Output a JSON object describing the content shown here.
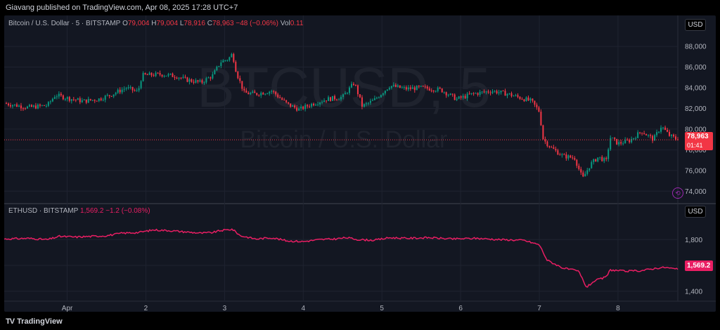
{
  "header": {
    "published": "Giavang published on TradingView.com, Apr 08, 2025 17:28 UTC+7"
  },
  "footer": {
    "logo": "TradingView"
  },
  "watermark": {
    "line1": "BTCUSD, 5",
    "line2": "Bitcoin / U.S. Dollar"
  },
  "btc": {
    "symbol": "Bitcoin / U.S. Dollar · 5 · BITSTAMP",
    "o_label": "O",
    "o": "79,004",
    "h_label": "H",
    "h": "79,004",
    "l_label": "L",
    "l": "78,916",
    "c_label": "C",
    "c": "78,963",
    "change": "−48 (−0.06%)",
    "vol_label": "Vol",
    "vol": "0.11",
    "last_price": "78,963",
    "countdown": "01:41",
    "currency": "USD"
  },
  "eth": {
    "symbol": "ETHUSD · BITSTAMP",
    "last": "1,569.2",
    "change": "−1.2 (−0.08%)",
    "last_price": "1,569.2",
    "currency": "USD"
  },
  "colors": {
    "up": "#089981",
    "down": "#f23645",
    "eth_line": "#e91e63",
    "bg": "#131722",
    "grid": "#1f2330"
  },
  "chart_data": [
    {
      "type": "candlestick",
      "title": "Bitcoin / U.S. Dollar · 5 · BITSTAMP",
      "ylim": [
        73000,
        89500
      ],
      "y_ticks": [
        74000,
        76000,
        78000,
        80000,
        82000,
        84000,
        86000,
        88000
      ],
      "y_tick_labels": [
        "74,000",
        "76,000",
        "78,000",
        "80,000",
        "82,000",
        "84,000",
        "86,000",
        "88,000"
      ],
      "x_ticks": [
        {
          "label": "Apr",
          "t": 1
        },
        {
          "label": "2",
          "t": 2
        },
        {
          "label": "3",
          "t": 3
        },
        {
          "label": "4",
          "t": 4
        },
        {
          "label": "5",
          "t": 5
        },
        {
          "label": "6",
          "t": 6
        },
        {
          "label": "7",
          "t": 7
        },
        {
          "label": "8",
          "t": 8
        }
      ],
      "xlim": [
        0.2,
        8.76
      ],
      "path": [
        [
          0.2,
          82500
        ],
        [
          0.5,
          82100
        ],
        [
          0.75,
          82300
        ],
        [
          0.85,
          83300
        ],
        [
          1.0,
          83000
        ],
        [
          1.2,
          82700
        ],
        [
          1.4,
          82900
        ],
        [
          1.55,
          83300
        ],
        [
          1.75,
          84000
        ],
        [
          1.9,
          83600
        ],
        [
          1.95,
          85200
        ],
        [
          2.2,
          85300
        ],
        [
          2.4,
          85100
        ],
        [
          2.5,
          84800
        ],
        [
          2.7,
          84500
        ],
        [
          2.85,
          85200
        ],
        [
          2.95,
          86500
        ],
        [
          3.05,
          86800
        ],
        [
          3.1,
          87300
        ],
        [
          3.15,
          85500
        ],
        [
          3.25,
          83500
        ],
        [
          3.4,
          83400
        ],
        [
          3.6,
          83700
        ],
        [
          3.8,
          82400
        ],
        [
          3.95,
          81900
        ],
        [
          4.1,
          82400
        ],
        [
          4.3,
          82900
        ],
        [
          4.5,
          83100
        ],
        [
          4.65,
          84500
        ],
        [
          4.75,
          82200
        ],
        [
          4.9,
          82800
        ],
        [
          5.1,
          84200
        ],
        [
          5.3,
          83900
        ],
        [
          5.5,
          84000
        ],
        [
          5.75,
          83800
        ],
        [
          5.95,
          82900
        ],
        [
          6.15,
          83400
        ],
        [
          6.4,
          83700
        ],
        [
          6.6,
          83400
        ],
        [
          6.9,
          82700
        ],
        [
          7.0,
          81700
        ],
        [
          7.05,
          79000
        ],
        [
          7.15,
          78200
        ],
        [
          7.3,
          77400
        ],
        [
          7.45,
          77200
        ],
        [
          7.55,
          75200
        ],
        [
          7.65,
          76600
        ],
        [
          7.75,
          77300
        ],
        [
          7.85,
          76900
        ],
        [
          7.9,
          79200
        ],
        [
          8.0,
          78600
        ],
        [
          8.15,
          78900
        ],
        [
          8.3,
          79800
        ],
        [
          8.45,
          79000
        ],
        [
          8.55,
          80300
        ],
        [
          8.65,
          79400
        ],
        [
          8.76,
          78963
        ]
      ],
      "last": 78963
    },
    {
      "type": "line",
      "title": "ETHUSD · BITSTAMP",
      "ylim": [
        1350,
        1970
      ],
      "y_ticks": [
        1400,
        1600,
        1800
      ],
      "y_tick_labels": [
        "1,400",
        "1,600",
        "1,800"
      ],
      "xlim": [
        0.2,
        8.76
      ],
      "path": [
        [
          0.2,
          1805
        ],
        [
          0.5,
          1810
        ],
        [
          0.75,
          1800
        ],
        [
          0.9,
          1825
        ],
        [
          1.1,
          1820
        ],
        [
          1.3,
          1825
        ],
        [
          1.5,
          1830
        ],
        [
          1.7,
          1850
        ],
        [
          1.9,
          1855
        ],
        [
          2.1,
          1875
        ],
        [
          2.3,
          1870
        ],
        [
          2.5,
          1860
        ],
        [
          2.7,
          1850
        ],
        [
          2.85,
          1855
        ],
        [
          2.95,
          1870
        ],
        [
          3.1,
          1880
        ],
        [
          3.2,
          1830
        ],
        [
          3.4,
          1805
        ],
        [
          3.6,
          1815
        ],
        [
          3.8,
          1790
        ],
        [
          4.0,
          1785
        ],
        [
          4.2,
          1800
        ],
        [
          4.4,
          1805
        ],
        [
          4.55,
          1815
        ],
        [
          4.7,
          1800
        ],
        [
          4.9,
          1795
        ],
        [
          5.1,
          1815
        ],
        [
          5.3,
          1810
        ],
        [
          5.6,
          1815
        ],
        [
          5.9,
          1805
        ],
        [
          6.2,
          1810
        ],
        [
          6.5,
          1800
        ],
        [
          6.8,
          1795
        ],
        [
          7.0,
          1760
        ],
        [
          7.1,
          1640
        ],
        [
          7.3,
          1580
        ],
        [
          7.5,
          1555
        ],
        [
          7.6,
          1430
        ],
        [
          7.7,
          1480
        ],
        [
          7.85,
          1510
        ],
        [
          7.9,
          1565
        ],
        [
          8.1,
          1555
        ],
        [
          8.3,
          1560
        ],
        [
          8.5,
          1580
        ],
        [
          8.6,
          1585
        ],
        [
          8.76,
          1569.2
        ]
      ],
      "last": 1569.2
    }
  ]
}
